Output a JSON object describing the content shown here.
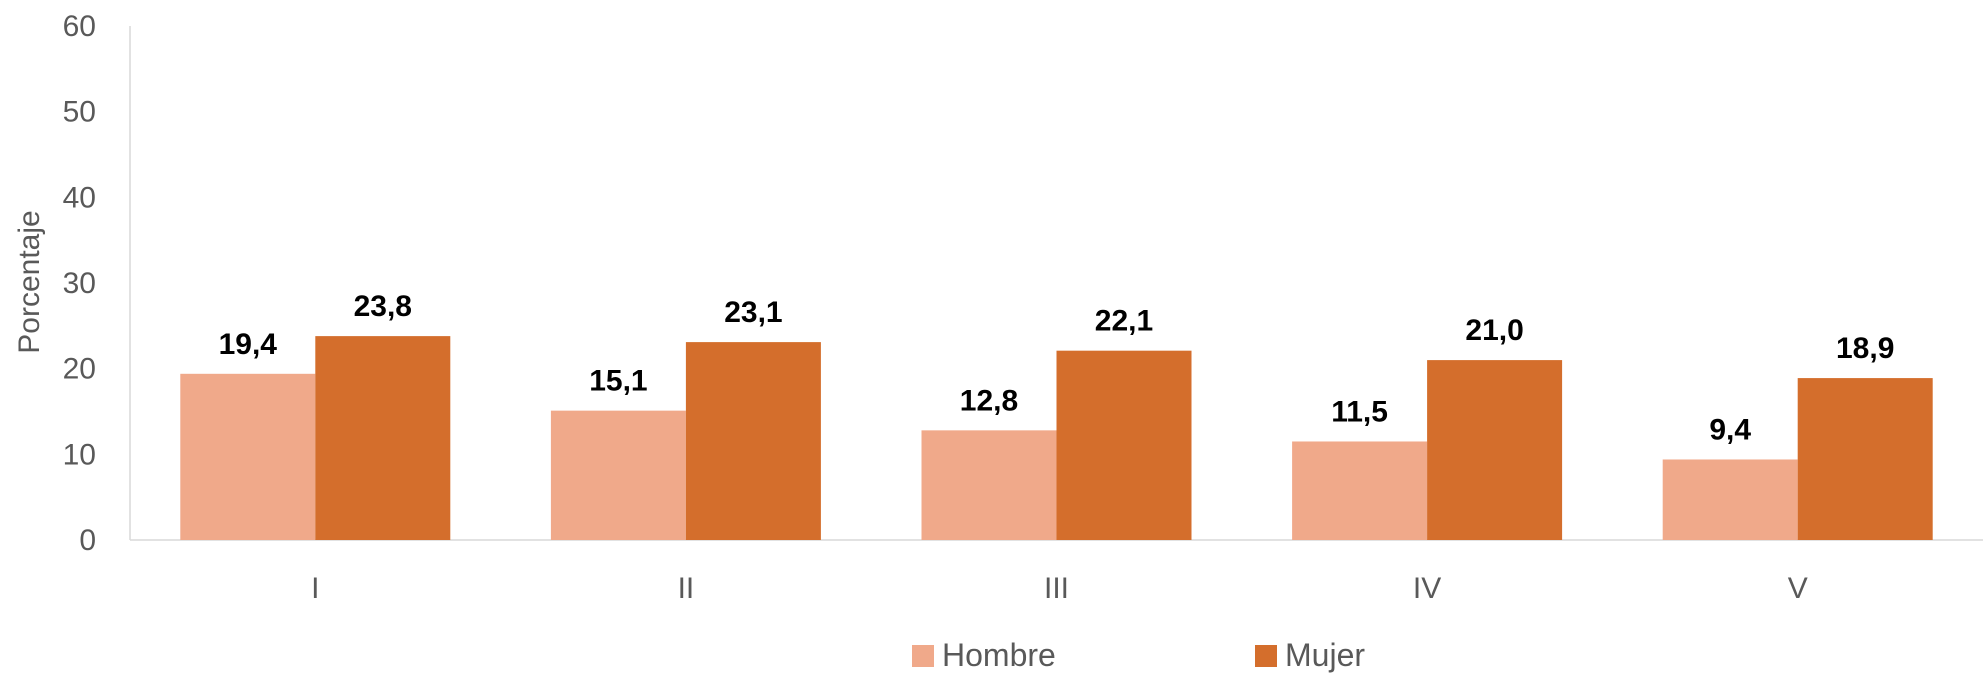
{
  "chart_data": {
    "type": "bar",
    "categories": [
      "I",
      "II",
      "III",
      "IV",
      "V"
    ],
    "series": [
      {
        "name": "Hombre",
        "values": [
          19.4,
          15.1,
          12.8,
          11.5,
          9.4
        ],
        "labels": [
          "19,4",
          "15,1",
          "12,8",
          "11,5",
          "9,4"
        ],
        "color": "#f0a98a"
      },
      {
        "name": "Mujer",
        "values": [
          23.8,
          23.1,
          22.1,
          21.0,
          18.9
        ],
        "labels": [
          "23,8",
          "23,1",
          "22,1",
          "21,0",
          "18,9"
        ],
        "color": "#d46e2c"
      }
    ],
    "ylabel": "Porcentaje",
    "xlabel": "",
    "ylim": [
      0,
      60
    ],
    "yticks": [
      "0",
      "10",
      "20",
      "30",
      "40",
      "50",
      "60"
    ],
    "grid": false,
    "legend_position": "bottom"
  }
}
